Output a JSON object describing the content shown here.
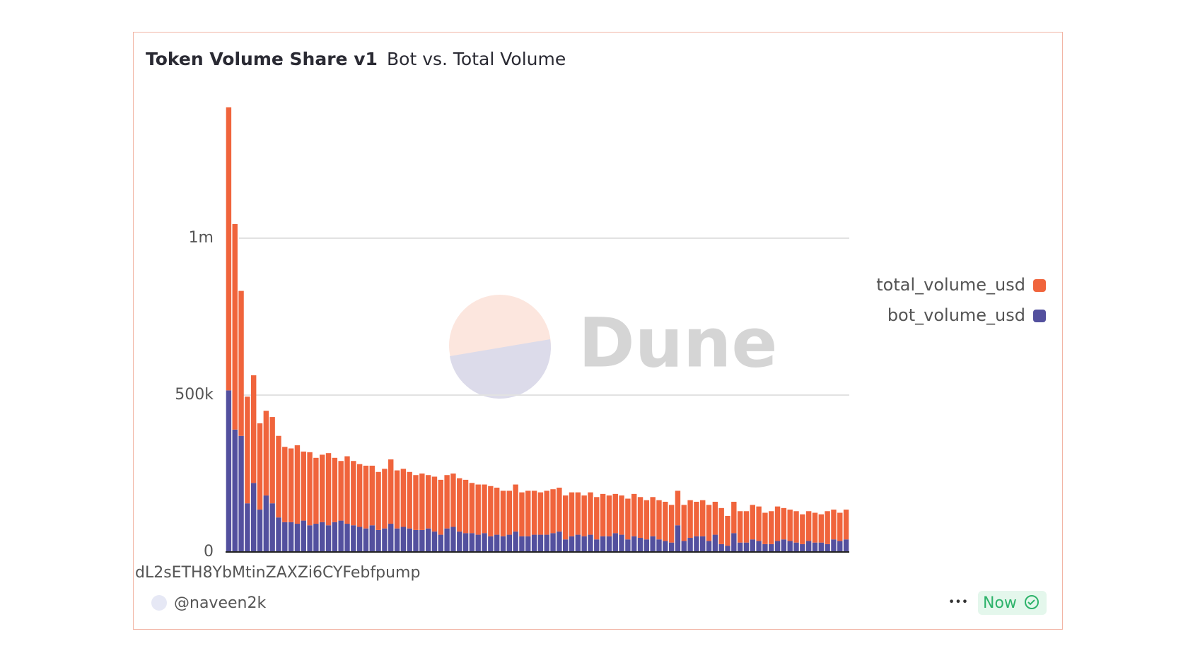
{
  "chart_data": {
    "type": "stacked-bar",
    "title": "Token Volume Share v1",
    "subtitle": "Bot vs. Total Volume",
    "watermark": "Dune",
    "categories": [
      "dL2sETH8YbMtinZAXZi6CYFebfpump",
      null,
      null,
      null,
      null,
      null,
      null,
      null,
      null,
      null,
      null,
      null,
      null,
      null,
      null,
      null,
      null,
      null,
      null,
      null,
      null,
      null,
      null,
      null,
      null,
      null,
      null,
      null,
      null,
      null,
      null,
      null,
      null,
      null,
      null,
      null,
      null,
      null,
      null,
      null,
      null,
      null,
      null,
      null,
      null,
      null,
      null,
      null,
      null,
      null,
      null,
      null,
      null,
      null,
      null,
      null,
      null,
      null,
      null,
      null,
      null,
      null,
      null,
      null,
      null,
      null,
      null,
      null,
      null,
      null,
      null,
      null,
      null,
      null,
      null,
      null,
      null,
      null,
      null,
      null,
      null,
      null,
      null,
      null,
      null,
      null,
      null,
      null,
      null,
      null,
      null,
      null,
      null,
      null,
      null,
      null,
      null,
      null,
      null,
      null
    ],
    "series": [
      {
        "name": "total_volume_usd",
        "color": "#f0643c",
        "values": [
          902000,
          655000,
          462000,
          340000,
          343000,
          275000,
          270000,
          275000,
          260000,
          240000,
          235000,
          250000,
          220000,
          233000,
          210000,
          215000,
          230000,
          205000,
          190000,
          215000,
          205000,
          200000,
          200000,
          190000,
          185000,
          190000,
          205000,
          185000,
          185000,
          180000,
          175000,
          180000,
          170000,
          175000,
          175000,
          170000,
          170000,
          170000,
          170000,
          160000,
          160000,
          155000,
          160000,
          150000,
          145000,
          140000,
          150000,
          140000,
          145000,
          140000,
          135000,
          140000,
          140000,
          140000,
          140000,
          140000,
          135000,
          130000,
          135000,
          135000,
          135000,
          130000,
          125000,
          125000,
          130000,
          135000,
          130000,
          125000,
          125000,
          125000,
          125000,
          120000,
          110000,
          115000,
          120000,
          110000,
          115000,
          115000,
          105000,
          115000,
          95000,
          100000,
          100000,
          100000,
          110000,
          110000,
          100000,
          105000,
          110000,
          100000,
          100000,
          100000,
          95000,
          95000,
          95000,
          90000,
          105000,
          95000,
          90000,
          95000
        ]
      },
      {
        "name": "bot_volume_usd",
        "color": "#53509e",
        "values": [
          515000,
          390000,
          370000,
          155000,
          220000,
          135000,
          180000,
          155000,
          110000,
          95000,
          95000,
          90000,
          100000,
          85000,
          90000,
          95000,
          85000,
          95000,
          100000,
          90000,
          85000,
          80000,
          75000,
          85000,
          70000,
          75000,
          90000,
          75000,
          80000,
          75000,
          70000,
          70000,
          75000,
          65000,
          55000,
          75000,
          80000,
          65000,
          60000,
          60000,
          55000,
          60000,
          50000,
          55000,
          50000,
          55000,
          65000,
          50000,
          50000,
          55000,
          55000,
          55000,
          60000,
          65000,
          40000,
          50000,
          55000,
          50000,
          55000,
          40000,
          50000,
          50000,
          60000,
          55000,
          40000,
          50000,
          45000,
          40000,
          50000,
          40000,
          35000,
          30000,
          85000,
          35000,
          45000,
          50000,
          50000,
          35000,
          55000,
          25000,
          20000,
          60000,
          30000,
          30000,
          40000,
          35000,
          25000,
          25000,
          35000,
          40000,
          35000,
          30000,
          25000,
          35000,
          30000,
          30000,
          25000,
          40000,
          35000,
          40000
        ]
      }
    ],
    "ylim": [
      0,
      1500000
    ],
    "yticks": [
      0,
      {
        "value": 500000,
        "label": "500k"
      },
      {
        "value": 1000000,
        "label": "1m"
      }
    ],
    "grid": true,
    "legend": "right"
  },
  "footer": {
    "author": "@naveen2k",
    "menu": "•••",
    "status": "Now"
  }
}
